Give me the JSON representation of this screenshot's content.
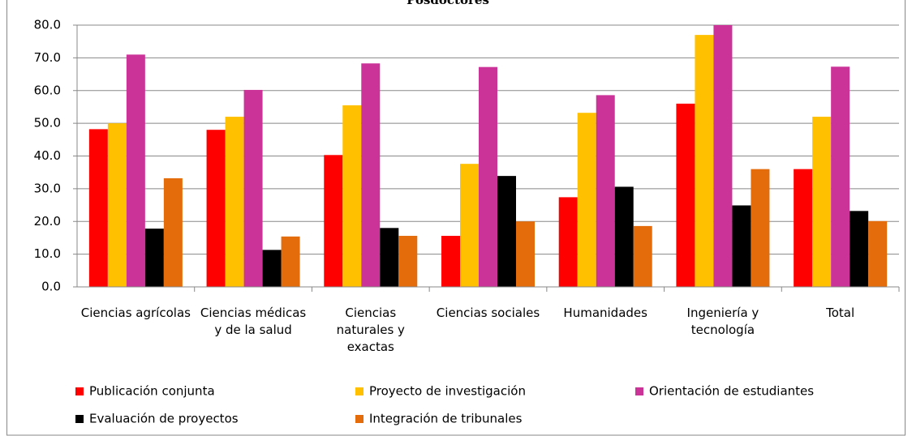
{
  "chart_data": {
    "type": "bar",
    "title": "Posdoctores",
    "categories": [
      "Ciencias agrícolas",
      "Ciencias médicas y de la salud",
      "Ciencias naturales y exactas",
      "Ciencias sociales",
      "Humanidades",
      "Ingeniería y tecnología",
      "Total"
    ],
    "series": [
      {
        "name": "Publicación conjunta",
        "color": "#ff0000",
        "values": [
          48.2,
          48.0,
          40.3,
          15.6,
          27.4,
          56.0,
          36.0
        ]
      },
      {
        "name": "Proyecto de investigación",
        "color": "#ffc000",
        "values": [
          50.0,
          52.0,
          55.5,
          37.6,
          53.2,
          77.0,
          52.0
        ]
      },
      {
        "name": "Orientación de estudiantes",
        "color": "#cc3399",
        "values": [
          71.0,
          60.2,
          68.3,
          67.2,
          58.6,
          80.0,
          67.3
        ]
      },
      {
        "name": "Evaluación de proyectos",
        "color": "#000000",
        "values": [
          17.8,
          11.3,
          18.0,
          33.9,
          30.6,
          24.9,
          23.2
        ]
      },
      {
        "name": "Integración de tribunales",
        "color": "#e46c0a",
        "values": [
          33.2,
          15.4,
          15.6,
          20.0,
          18.6,
          36.0,
          20.1
        ]
      }
    ],
    "ylim": [
      0,
      80
    ],
    "yticks": [
      {
        "value": 0,
        "label": "0.0"
      },
      {
        "value": 10,
        "label": "10.0"
      },
      {
        "value": 20,
        "label": "20.0"
      },
      {
        "value": 30,
        "label": "30.0"
      },
      {
        "value": 40,
        "label": "40.0"
      },
      {
        "value": 50,
        "label": "50.0"
      },
      {
        "value": 60,
        "label": "60.0"
      },
      {
        "value": 70,
        "label": "70.0"
      },
      {
        "value": 80,
        "label": "80.0"
      }
    ],
    "grid": true,
    "legend": "bottom"
  }
}
